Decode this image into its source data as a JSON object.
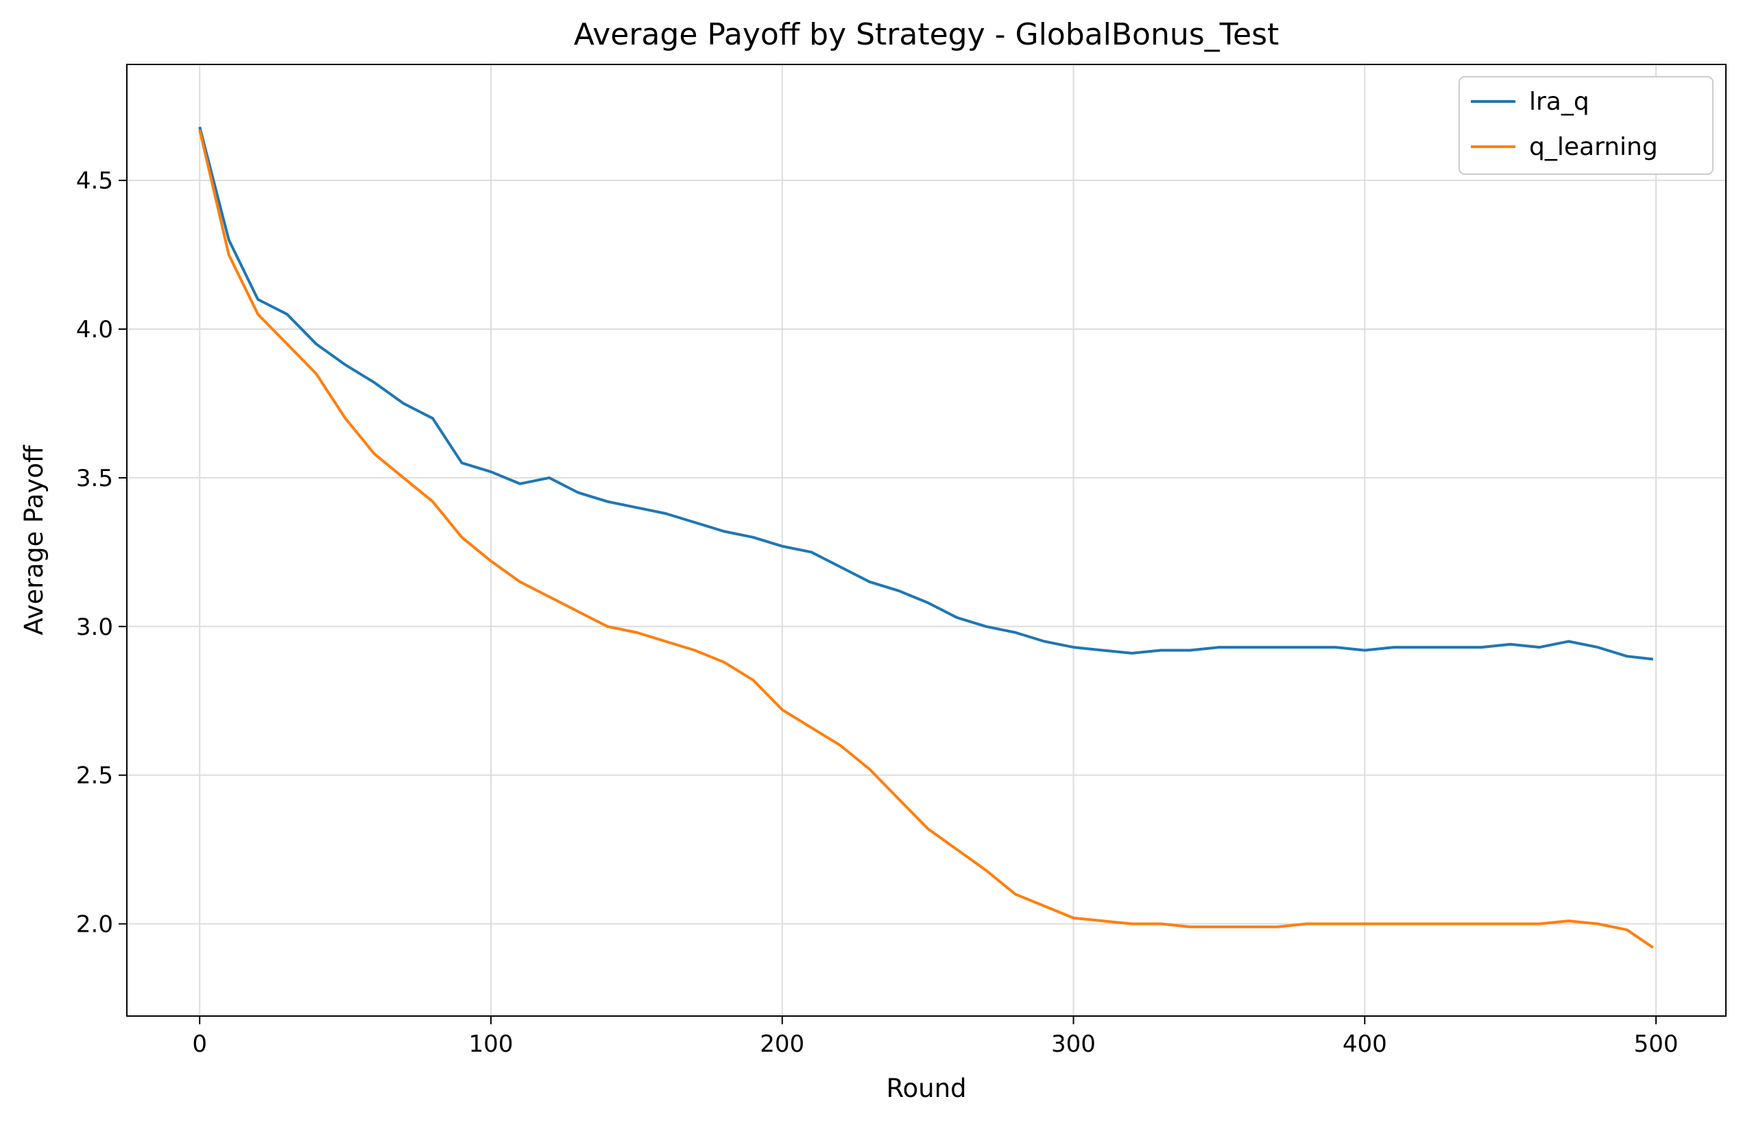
{
  "chart_data": {
    "type": "line",
    "title": "Average Payoff by Strategy - GlobalBonus_Test",
    "xlabel": "Round",
    "ylabel": "Average Payoff",
    "xlim": [
      -25,
      524
    ],
    "ylim": [
      1.69,
      4.89
    ],
    "xticks": [
      0,
      100,
      200,
      300,
      400,
      500
    ],
    "yticks": [
      2.0,
      2.5,
      3.0,
      3.5,
      4.0,
      4.5
    ],
    "ytick_labels": [
      "2.0",
      "2.5",
      "3.0",
      "3.5",
      "4.0",
      "4.5"
    ],
    "grid": true,
    "legend_position": "top-right",
    "series": [
      {
        "name": "lra_q",
        "color": "#1f77b4",
        "x": [
          0,
          10,
          20,
          30,
          40,
          50,
          60,
          70,
          80,
          90,
          100,
          110,
          120,
          130,
          140,
          150,
          160,
          170,
          180,
          190,
          200,
          210,
          220,
          230,
          240,
          250,
          260,
          270,
          280,
          290,
          300,
          310,
          320,
          330,
          340,
          350,
          360,
          370,
          380,
          390,
          400,
          410,
          420,
          430,
          440,
          450,
          460,
          470,
          480,
          490,
          499
        ],
        "y": [
          4.68,
          4.3,
          4.1,
          4.05,
          3.95,
          3.88,
          3.82,
          3.75,
          3.7,
          3.55,
          3.52,
          3.48,
          3.5,
          3.45,
          3.42,
          3.4,
          3.38,
          3.35,
          3.32,
          3.3,
          3.27,
          3.25,
          3.2,
          3.15,
          3.12,
          3.08,
          3.03,
          3.0,
          2.98,
          2.95,
          2.93,
          2.92,
          2.91,
          2.92,
          2.92,
          2.93,
          2.93,
          2.93,
          2.93,
          2.93,
          2.92,
          2.93,
          2.93,
          2.93,
          2.93,
          2.94,
          2.93,
          2.95,
          2.93,
          2.9,
          2.89
        ]
      },
      {
        "name": "q_learning",
        "color": "#ff7f0e",
        "x": [
          0,
          10,
          20,
          30,
          40,
          50,
          60,
          70,
          80,
          90,
          100,
          110,
          120,
          130,
          140,
          150,
          160,
          170,
          180,
          190,
          200,
          210,
          220,
          230,
          240,
          250,
          260,
          270,
          280,
          290,
          300,
          310,
          320,
          330,
          340,
          350,
          360,
          370,
          380,
          390,
          400,
          410,
          420,
          430,
          440,
          450,
          460,
          470,
          480,
          490,
          499
        ],
        "y": [
          4.67,
          4.25,
          4.05,
          3.95,
          3.85,
          3.7,
          3.58,
          3.5,
          3.42,
          3.3,
          3.22,
          3.15,
          3.1,
          3.05,
          3.0,
          2.98,
          2.95,
          2.92,
          2.88,
          2.82,
          2.72,
          2.66,
          2.6,
          2.52,
          2.42,
          2.32,
          2.25,
          2.18,
          2.1,
          2.06,
          2.02,
          2.01,
          2.0,
          2.0,
          1.99,
          1.99,
          1.99,
          1.99,
          2.0,
          2.0,
          2.0,
          2.0,
          2.0,
          2.0,
          2.0,
          2.0,
          2.0,
          2.01,
          2.0,
          1.98,
          1.92
        ]
      }
    ]
  }
}
